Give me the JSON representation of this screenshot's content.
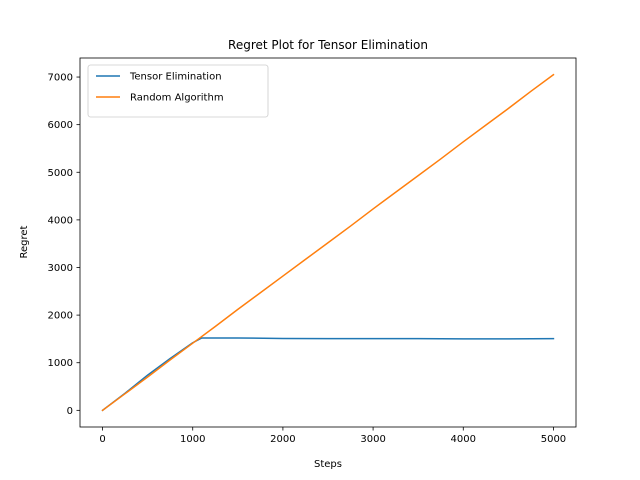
{
  "chart_data": {
    "type": "line",
    "title": "Regret Plot for Tensor Elimination",
    "xlabel": "Steps",
    "ylabel": "Regret",
    "xlim": [
      -250,
      5250
    ],
    "ylim": [
      -350,
      7400
    ],
    "xticks": [
      0,
      1000,
      2000,
      3000,
      4000,
      5000
    ],
    "yticks": [
      0,
      1000,
      2000,
      3000,
      4000,
      5000,
      6000,
      7000
    ],
    "grid": false,
    "legend_position": "top-left",
    "series": [
      {
        "name": "Tensor Elimination",
        "color": "#1f77b4",
        "points": [
          [
            0,
            0
          ],
          [
            250,
            360
          ],
          [
            500,
            740
          ],
          [
            750,
            1090
          ],
          [
            1000,
            1420
          ],
          [
            1100,
            1520
          ],
          [
            1500,
            1520
          ],
          [
            2000,
            1510
          ],
          [
            2500,
            1505
          ],
          [
            3000,
            1505
          ],
          [
            3500,
            1505
          ],
          [
            4000,
            1500
          ],
          [
            4500,
            1500
          ],
          [
            5000,
            1505
          ]
        ]
      },
      {
        "name": "Random Algorithm",
        "color": "#ff7f0e",
        "points": [
          [
            0,
            0
          ],
          [
            250,
            350
          ],
          [
            500,
            700
          ],
          [
            750,
            1060
          ],
          [
            1000,
            1410
          ],
          [
            1250,
            1760
          ],
          [
            1500,
            2120
          ],
          [
            1750,
            2470
          ],
          [
            2000,
            2820
          ],
          [
            2250,
            3170
          ],
          [
            2500,
            3520
          ],
          [
            2750,
            3870
          ],
          [
            3000,
            4230
          ],
          [
            3250,
            4580
          ],
          [
            3500,
            4930
          ],
          [
            3750,
            5280
          ],
          [
            4000,
            5640
          ],
          [
            4250,
            5990
          ],
          [
            4500,
            6340
          ],
          [
            4750,
            6700
          ],
          [
            5000,
            7050
          ]
        ]
      }
    ]
  }
}
